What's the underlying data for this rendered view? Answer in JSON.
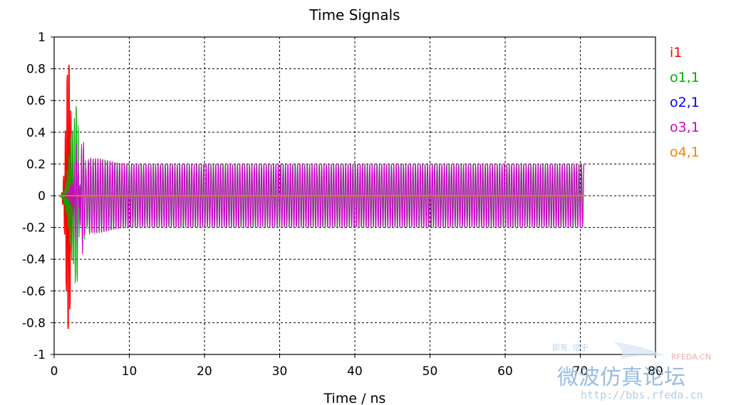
{
  "chart_data": {
    "type": "line",
    "title": "Time Signals",
    "xlabel": "Time / ns",
    "ylabel": "",
    "xlim": [
      0,
      80
    ],
    "ylim": [
      -1,
      1
    ],
    "xticks": [
      0,
      10,
      20,
      30,
      40,
      50,
      60,
      70,
      80
    ],
    "yticks": [
      1,
      0.8,
      0.6,
      0.4,
      0.2,
      0,
      -0.2,
      -0.4,
      -0.6,
      -0.8,
      -1
    ],
    "ytick_labels": [
      "1",
      "0.8",
      "0.6",
      "0.4",
      "0.2",
      "0",
      "-0.2",
      "-0.4",
      "-0.6",
      "-0.8",
      "-1"
    ],
    "grid": true,
    "legend_position": "right",
    "x_end": 70.5,
    "series": [
      {
        "name": "i1",
        "color": "#ff0000",
        "pulse_center": 1.9,
        "pulse_peak": 0.97,
        "steady_amplitude": 0
      },
      {
        "name": "o1,1",
        "color": "#00b000",
        "pulse_center": 2.7,
        "pulse_peak": 0.55,
        "steady_amplitude": 0.2
      },
      {
        "name": "o2,1",
        "color": "#0000ff",
        "pulse_center": 0,
        "pulse_peak": 0,
        "steady_amplitude": 0
      },
      {
        "name": "o3,1",
        "color": "#d000d0",
        "pulse_center": 3.2,
        "pulse_peak": 0.25,
        "steady_amplitude": 0.2
      },
      {
        "name": "o4,1",
        "color": "#ff8000",
        "pulse_center": 0,
        "pulse_peak": 0,
        "steady_amplitude": 0
      }
    ]
  },
  "watermark": {
    "url": "http://bbs.rfeda.cn",
    "forum_name": "微波仿真论坛",
    "brand": "RFEDA.CN",
    "small_text": "即有. 倍乎"
  }
}
